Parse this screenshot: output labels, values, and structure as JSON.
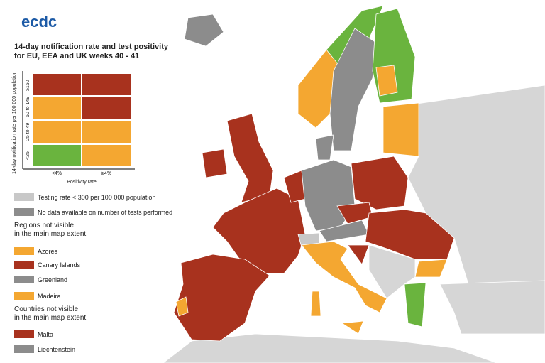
{
  "logo": "ecdc",
  "title": "14-day notification rate and test positivity for EU, EEA and UK weeks 40 - 41",
  "matrix": {
    "y_axis_label": "14-day notification rate per 100 000 population",
    "rows": [
      "≥150",
      "50 to 149",
      "25 to 49",
      "<25"
    ],
    "columns": [
      "<4%",
      "≥4%"
    ],
    "x_axis_label": "Positivity rate"
  },
  "legend": {
    "items": [
      "Testing rate < 300 per 100 000 population",
      "No data available on number of tests performed"
    ],
    "regions_heading": "Regions not visible in the main map extent",
    "regions": [
      "Azores",
      "Canary Islands",
      "Greenland",
      "Madeira"
    ],
    "countries_heading": "Countries not visible in the main map extent",
    "countries": [
      "Malta",
      "Liechtenstein"
    ]
  }
}
